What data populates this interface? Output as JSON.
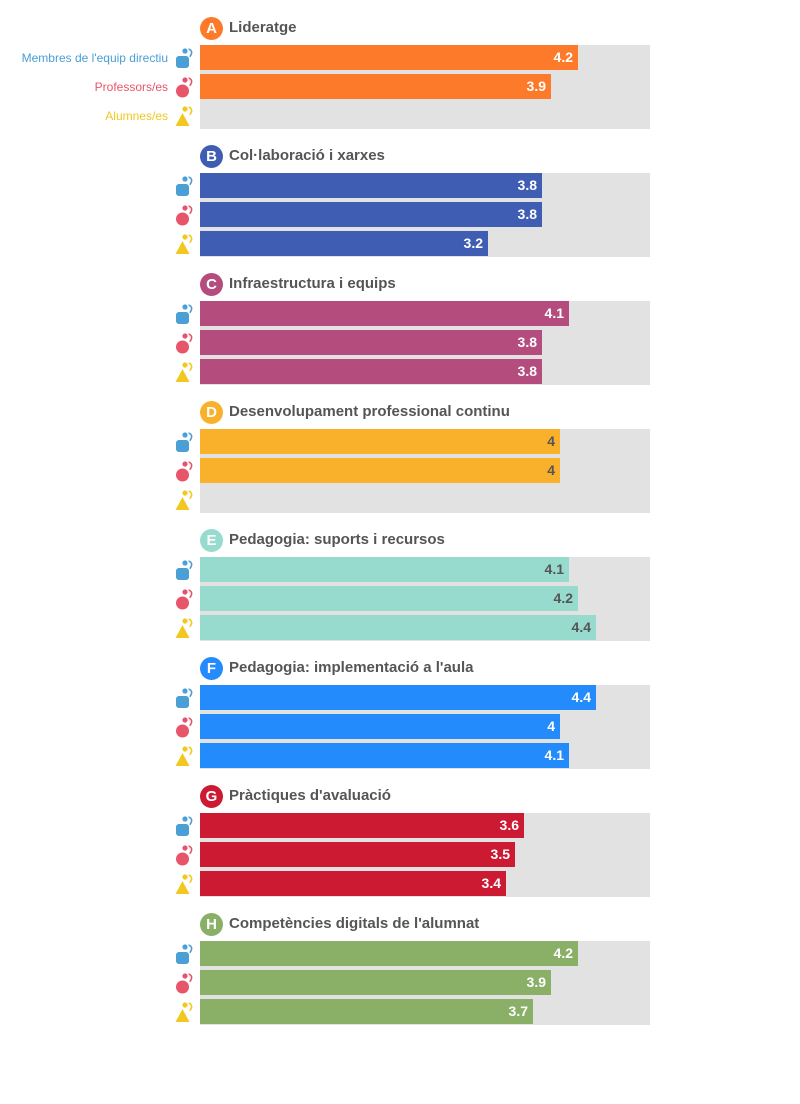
{
  "colors": {
    "grey_track": "#e2e2e2",
    "title_text": "#555555"
  },
  "chart_data": {
    "type": "bar",
    "orientation": "horizontal",
    "xlim": [
      0,
      5
    ],
    "grid": false,
    "series": [
      {
        "name": "Membres de l'equip directiu",
        "color": "#4a9fd5",
        "icon": "management-team-icon"
      },
      {
        "name": "Professors/es",
        "color": "#e8556a",
        "icon": "teacher-icon"
      },
      {
        "name": "Alumnes/es",
        "color": "#f2c81e",
        "icon": "student-icon"
      }
    ],
    "groups": [
      {
        "letter": "A",
        "title": "Lideratge",
        "color": "#fe7a2b",
        "label_color": "#ffffff",
        "values": [
          4.2,
          3.9,
          null
        ],
        "labels": [
          "4.2",
          "3.9",
          ""
        ]
      },
      {
        "letter": "B",
        "title": "Col·laboració i xarxes",
        "color": "#3f5db3",
        "label_color": "#ffffff",
        "values": [
          3.8,
          3.8,
          3.2
        ],
        "labels": [
          "3.8",
          "3.8",
          "3.2"
        ]
      },
      {
        "letter": "C",
        "title": "Infraestructura i equips",
        "color": "#b44c7e",
        "label_color": "#ffffff",
        "values": [
          4.1,
          3.8,
          3.8
        ],
        "labels": [
          "4.1",
          "3.8",
          "3.8"
        ]
      },
      {
        "letter": "D",
        "title": "Desenvolupament professional continu",
        "color": "#f9b12c",
        "label_color": "#555555",
        "values": [
          4,
          4,
          null
        ],
        "labels": [
          "4",
          "4",
          ""
        ]
      },
      {
        "letter": "E",
        "title": "Pedagogia: suports i recursos",
        "color": "#97dbcf",
        "label_color": "#555555",
        "values": [
          4.1,
          4.2,
          4.4
        ],
        "labels": [
          "4.1",
          "4.2",
          "4.4"
        ]
      },
      {
        "letter": "F",
        "title": "Pedagogia: implementació a l'aula",
        "color": "#238bfb",
        "label_color": "#ffffff",
        "values": [
          4.4,
          4,
          4.1
        ],
        "labels": [
          "4.4",
          "4",
          "4.1"
        ]
      },
      {
        "letter": "G",
        "title": "Pràctiques d'avaluació",
        "color": "#cb1a32",
        "label_color": "#ffffff",
        "values": [
          3.6,
          3.5,
          3.4
        ],
        "labels": [
          "3.6",
          "3.5",
          "3.4"
        ]
      },
      {
        "letter": "H",
        "title": "Competències digitals de l'alumnat",
        "color": "#8aaf67",
        "label_color": "#ffffff",
        "values": [
          4.2,
          3.9,
          3.7
        ],
        "labels": [
          "4.2",
          "3.9",
          "3.7"
        ]
      }
    ]
  }
}
